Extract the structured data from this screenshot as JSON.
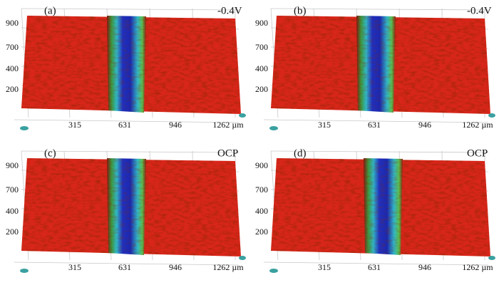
{
  "panels": [
    {
      "label": "(a)",
      "condition": "-0.4V",
      "y_labels": [
        "900",
        "700",
        "400",
        "200"
      ],
      "x_labels": [
        "315",
        "631",
        "946",
        "1262 µm"
      ]
    },
    {
      "label": "(b)",
      "condition": "-0.4V",
      "y_labels": [
        "900",
        "700",
        "400",
        "200"
      ],
      "x_labels": [
        "315",
        "631",
        "946",
        "1262 µm"
      ]
    },
    {
      "label": "(c)",
      "condition": "OCP",
      "y_labels": [
        "900",
        "700",
        "400",
        "200"
      ],
      "x_labels": [
        "315",
        "631",
        "946",
        "1262 µm"
      ]
    },
    {
      "label": "(d)",
      "condition": "OCP",
      "y_labels": [
        "900",
        "700",
        "400",
        "200"
      ],
      "x_labels": [
        "315",
        "631",
        "946",
        "1262 µm"
      ]
    }
  ]
}
